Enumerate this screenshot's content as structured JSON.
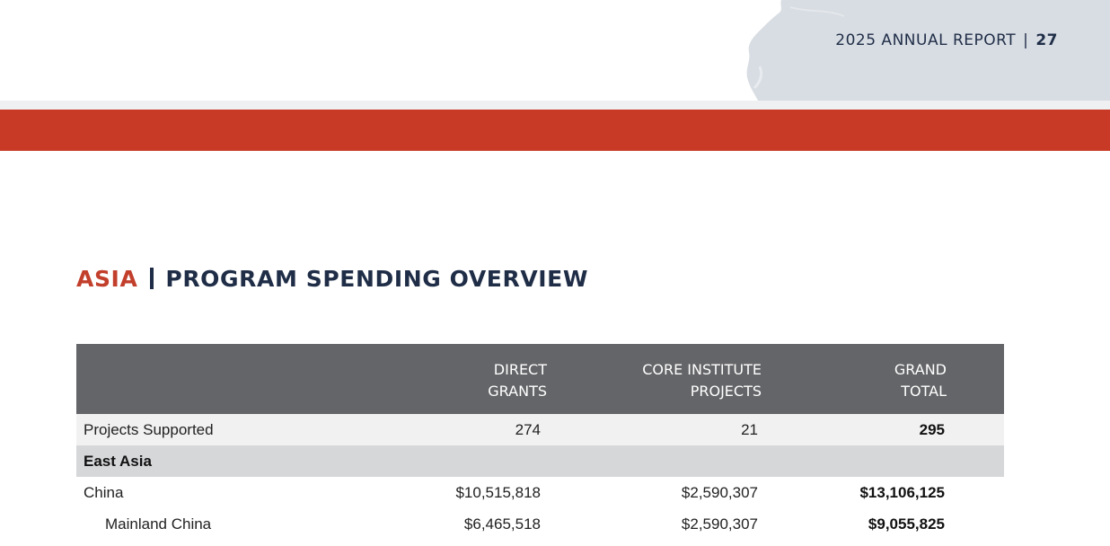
{
  "header": {
    "report": "2025 ANNUAL REPORT",
    "separator": "|",
    "page_number": "27"
  },
  "section": {
    "region": "ASIA",
    "title": "PROGRAM SPENDING OVERVIEW"
  },
  "table": {
    "columns": {
      "direct_grants_line1": "DIRECT",
      "direct_grants_line2": "GRANTS",
      "core_line1": "CORE INSTITUTE",
      "core_line2": "PROJECTS",
      "total_line1": "GRAND",
      "total_line2": "TOTAL"
    },
    "projects_supported": {
      "label": "Projects Supported",
      "direct": "274",
      "core": "21",
      "total": "295"
    },
    "group": {
      "label": "East Asia"
    },
    "rows": [
      {
        "label": "China",
        "direct": "$10,515,818",
        "core": "$2,590,307",
        "total": "$13,106,125"
      },
      {
        "label": "Mainland China",
        "direct": "$6,465,518",
        "core": "$2,590,307",
        "total": "$9,055,825"
      }
    ]
  },
  "colors": {
    "accent_red": "#c93a26",
    "navy": "#1f2d47",
    "header_gray": "#646568"
  }
}
